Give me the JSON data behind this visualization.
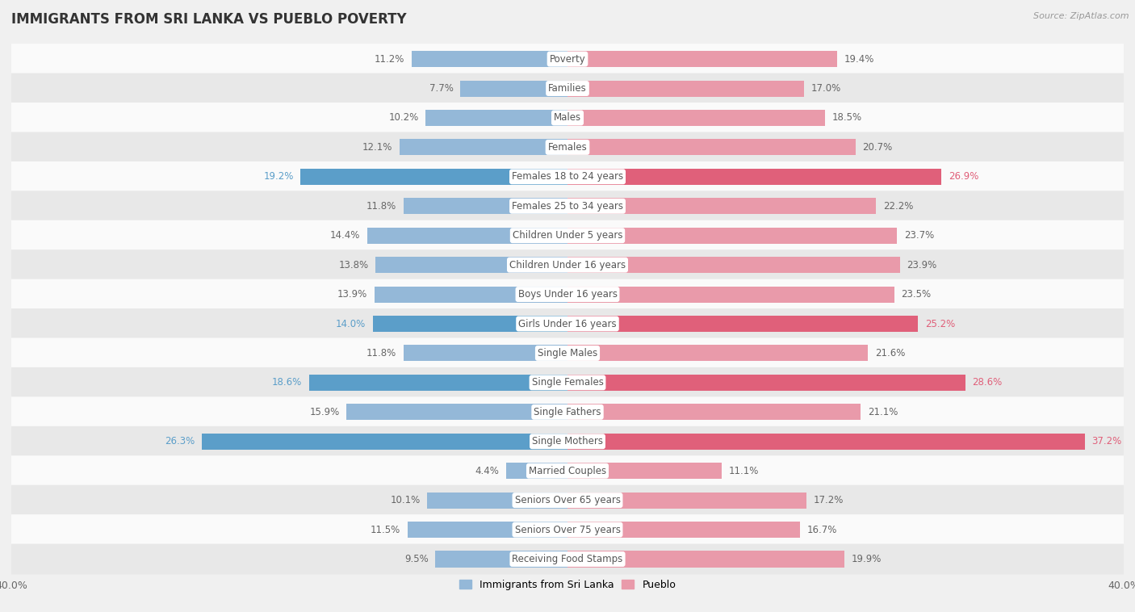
{
  "title": "IMMIGRANTS FROM SRI LANKA VS PUEBLO POVERTY",
  "source": "Source: ZipAtlas.com",
  "categories": [
    "Poverty",
    "Families",
    "Males",
    "Females",
    "Females 18 to 24 years",
    "Females 25 to 34 years",
    "Children Under 5 years",
    "Children Under 16 years",
    "Boys Under 16 years",
    "Girls Under 16 years",
    "Single Males",
    "Single Females",
    "Single Fathers",
    "Single Mothers",
    "Married Couples",
    "Seniors Over 65 years",
    "Seniors Over 75 years",
    "Receiving Food Stamps"
  ],
  "sri_lanka_values": [
    11.2,
    7.7,
    10.2,
    12.1,
    19.2,
    11.8,
    14.4,
    13.8,
    13.9,
    14.0,
    11.8,
    18.6,
    15.9,
    26.3,
    4.4,
    10.1,
    11.5,
    9.5
  ],
  "pueblo_values": [
    19.4,
    17.0,
    18.5,
    20.7,
    26.9,
    22.2,
    23.7,
    23.9,
    23.5,
    25.2,
    21.6,
    28.6,
    21.1,
    37.2,
    11.1,
    17.2,
    16.7,
    19.9
  ],
  "sri_lanka_color": "#94b8d8",
  "pueblo_color": "#e99aaa",
  "sri_lanka_highlight_color": "#5b9ec9",
  "pueblo_highlight_color": "#e0607a",
  "background_color": "#f0f0f0",
  "row_light_color": "#fafafa",
  "row_dark_color": "#e8e8e8",
  "axis_max": 40.0,
  "label_fontsize": 8.5,
  "title_fontsize": 12,
  "legend_sri_lanka": "Immigrants from Sri Lanka",
  "legend_pueblo": "Pueblo",
  "highlight_categories": [
    "Single Mothers",
    "Females 18 to 24 years",
    "Girls Under 16 years",
    "Single Females"
  ]
}
